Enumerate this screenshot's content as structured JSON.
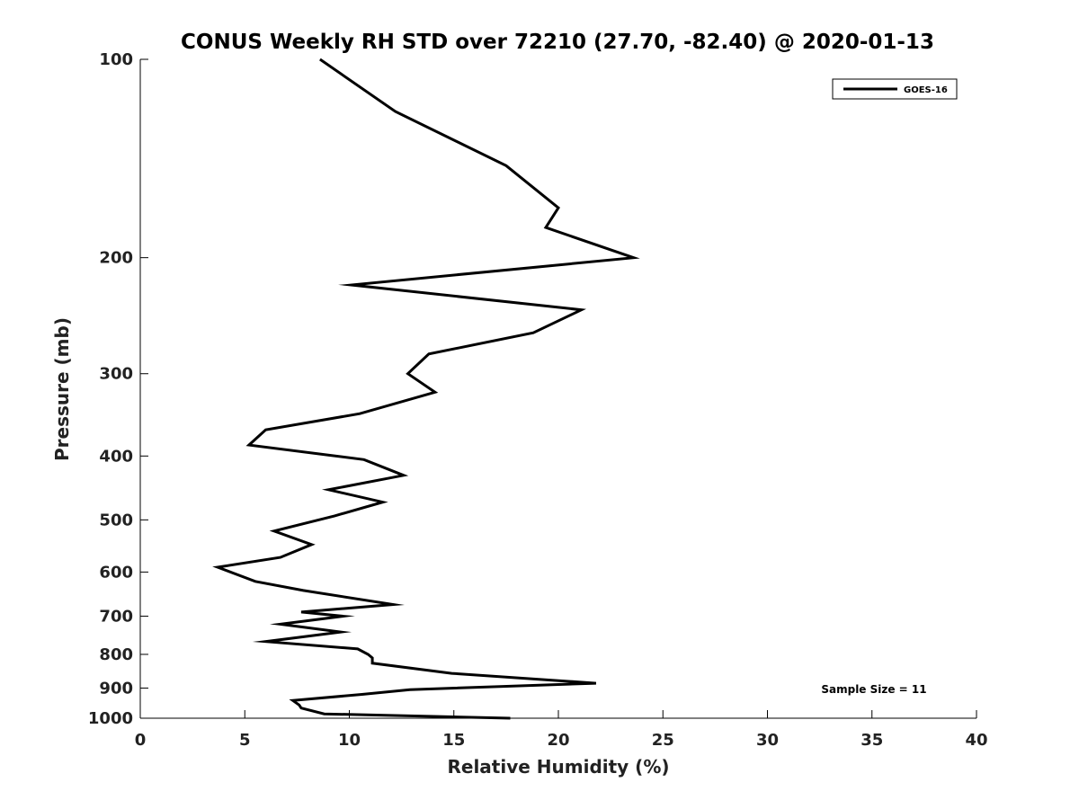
{
  "chart_data": {
    "type": "line",
    "title": "CONUS Weekly RH STD over 72210 (27.70, -82.40) @ 2020-01-13",
    "xlabel": "Relative Humidity (%)",
    "ylabel": "Pressure (mb)",
    "xlim": [
      0,
      40
    ],
    "ylim": [
      100,
      1000
    ],
    "yscale": "log",
    "y_reversed": true,
    "grid": false,
    "xticks": [
      0,
      5,
      10,
      15,
      20,
      25,
      30,
      35,
      40
    ],
    "xtick_labels": [
      "0",
      "5",
      "10",
      "15",
      "20",
      "25",
      "30",
      "35",
      "40"
    ],
    "yticks": [
      100,
      200,
      300,
      400,
      500,
      600,
      700,
      800,
      900,
      1000
    ],
    "ytick_labels": [
      "100",
      "200",
      "300",
      "400",
      "500",
      "600",
      "700",
      "800",
      "900",
      "1000"
    ],
    "legend_position": "top-right",
    "series": [
      {
        "name": "GOES-16",
        "color": "#000000",
        "x": [
          8.6,
          12.2,
          17.5,
          20.0,
          19.4,
          23.6,
          10.1,
          21.1,
          18.8,
          13.8,
          12.8,
          14.1,
          10.5,
          6.0,
          5.2,
          10.7,
          12.6,
          9.0,
          11.6,
          9.3,
          6.4,
          8.2,
          6.7,
          3.7,
          5.5,
          7.8,
          12.1,
          7.7,
          9.7,
          6.7,
          9.6,
          6.0,
          10.4,
          10.9,
          11.1,
          11.1,
          14.9,
          21.8,
          12.9,
          10.6,
          7.3,
          7.6,
          7.7,
          8.8,
          17.7
        ],
        "y": [
          100,
          120,
          145,
          168,
          180,
          200,
          220,
          240,
          260,
          280,
          300,
          320,
          345,
          365,
          385,
          405,
          428,
          450,
          470,
          493,
          520,
          545,
          570,
          590,
          620,
          640,
          672,
          690,
          700,
          720,
          740,
          765,
          785,
          800,
          810,
          825,
          855,
          885,
          905,
          920,
          940,
          955,
          965,
          985,
          1000
        ]
      }
    ],
    "annotations": [
      "Sample Size = 11"
    ]
  }
}
